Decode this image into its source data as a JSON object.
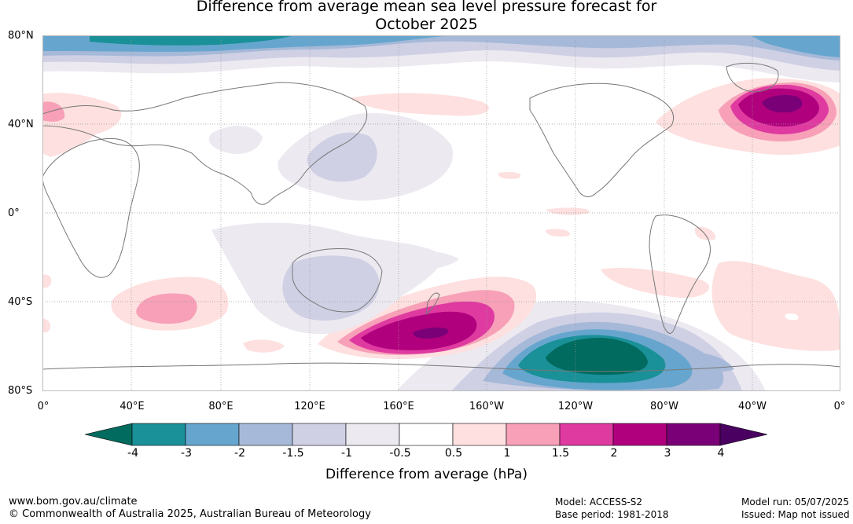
{
  "title": {
    "line1": "Difference from average mean sea level pressure forecast for",
    "line2": "October 2025"
  },
  "axes": {
    "lat_labels": [
      "80°N",
      "40°N",
      "0°",
      "40°S",
      "80°S"
    ],
    "lon_labels": [
      "0°",
      "40°E",
      "80°E",
      "120°E",
      "160°E",
      "160°W",
      "120°W",
      "80°W",
      "40°W",
      "0°"
    ]
  },
  "colorbar": {
    "title": "Difference from average (hPa)",
    "labels": [
      "-4",
      "-3",
      "-2",
      "-1.5",
      "-1",
      "-0.5",
      "0.5",
      "1",
      "1.5",
      "2",
      "3",
      "4"
    ],
    "colors": [
      "#006b5e",
      "#1a9098",
      "#66a6ce",
      "#a6b9d8",
      "#cfd0e4",
      "#ece9f1",
      "#ffffff",
      "#fde0df",
      "#f7a0b8",
      "#df3aa0",
      "#b0007e",
      "#7a0077",
      "#490060"
    ]
  },
  "anomalies": [
    {
      "region": "North Atlantic",
      "level": "3 to 4"
    },
    {
      "region": "South Pacific near New Zealand",
      "level": "3 to 4"
    },
    {
      "region": "Southern Ocean south of Pacific",
      "level": "-4 to -3"
    },
    {
      "region": "Arctic",
      "level": "-3 to -2"
    }
  ],
  "footer": {
    "website": "www.bom.gov.au/climate",
    "copyright": "© Commonwealth of Australia 2025, Australian Bureau of Meteorology",
    "model": "Model: ACCESS-S2",
    "base_period": "Base period: 1981-2018",
    "model_run": "Model run: 05/07/2025",
    "issued": "Issued: Map not issued"
  }
}
